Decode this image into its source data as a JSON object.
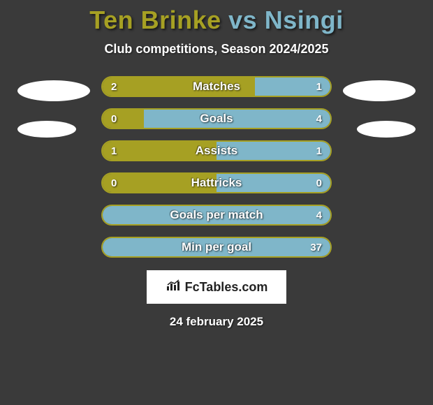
{
  "header": {
    "player1": "Ten Brinke",
    "vs": " vs ",
    "player2": "Nsingi",
    "subtitle": "Club competitions, Season 2024/2025"
  },
  "colors": {
    "player1": "#a6a023",
    "player2": "#7fb6c9",
    "background": "#3a3a3a",
    "bar_bg": "#4a4a4a"
  },
  "bar_style": {
    "height": 30,
    "border_radius": 15,
    "border_width": 2,
    "gap": 16
  },
  "stats": [
    {
      "label": "Matches",
      "left_val": "2",
      "right_val": "1",
      "left_pct": 67,
      "right_pct": 33
    },
    {
      "label": "Goals",
      "left_val": "0",
      "right_val": "4",
      "left_pct": 18,
      "right_pct": 82
    },
    {
      "label": "Assists",
      "left_val": "1",
      "right_val": "1",
      "left_pct": 50,
      "right_pct": 50
    },
    {
      "label": "Hattricks",
      "left_val": "0",
      "right_val": "0",
      "left_pct": 50,
      "right_pct": 50
    },
    {
      "label": "Goals per match",
      "left_val": "",
      "right_val": "4",
      "left_pct": 0,
      "right_pct": 100
    },
    {
      "label": "Min per goal",
      "left_val": "",
      "right_val": "37",
      "left_pct": 0,
      "right_pct": 100
    }
  ],
  "footer": {
    "brand": "FcTables.com",
    "date_text": "24 february 2025"
  }
}
